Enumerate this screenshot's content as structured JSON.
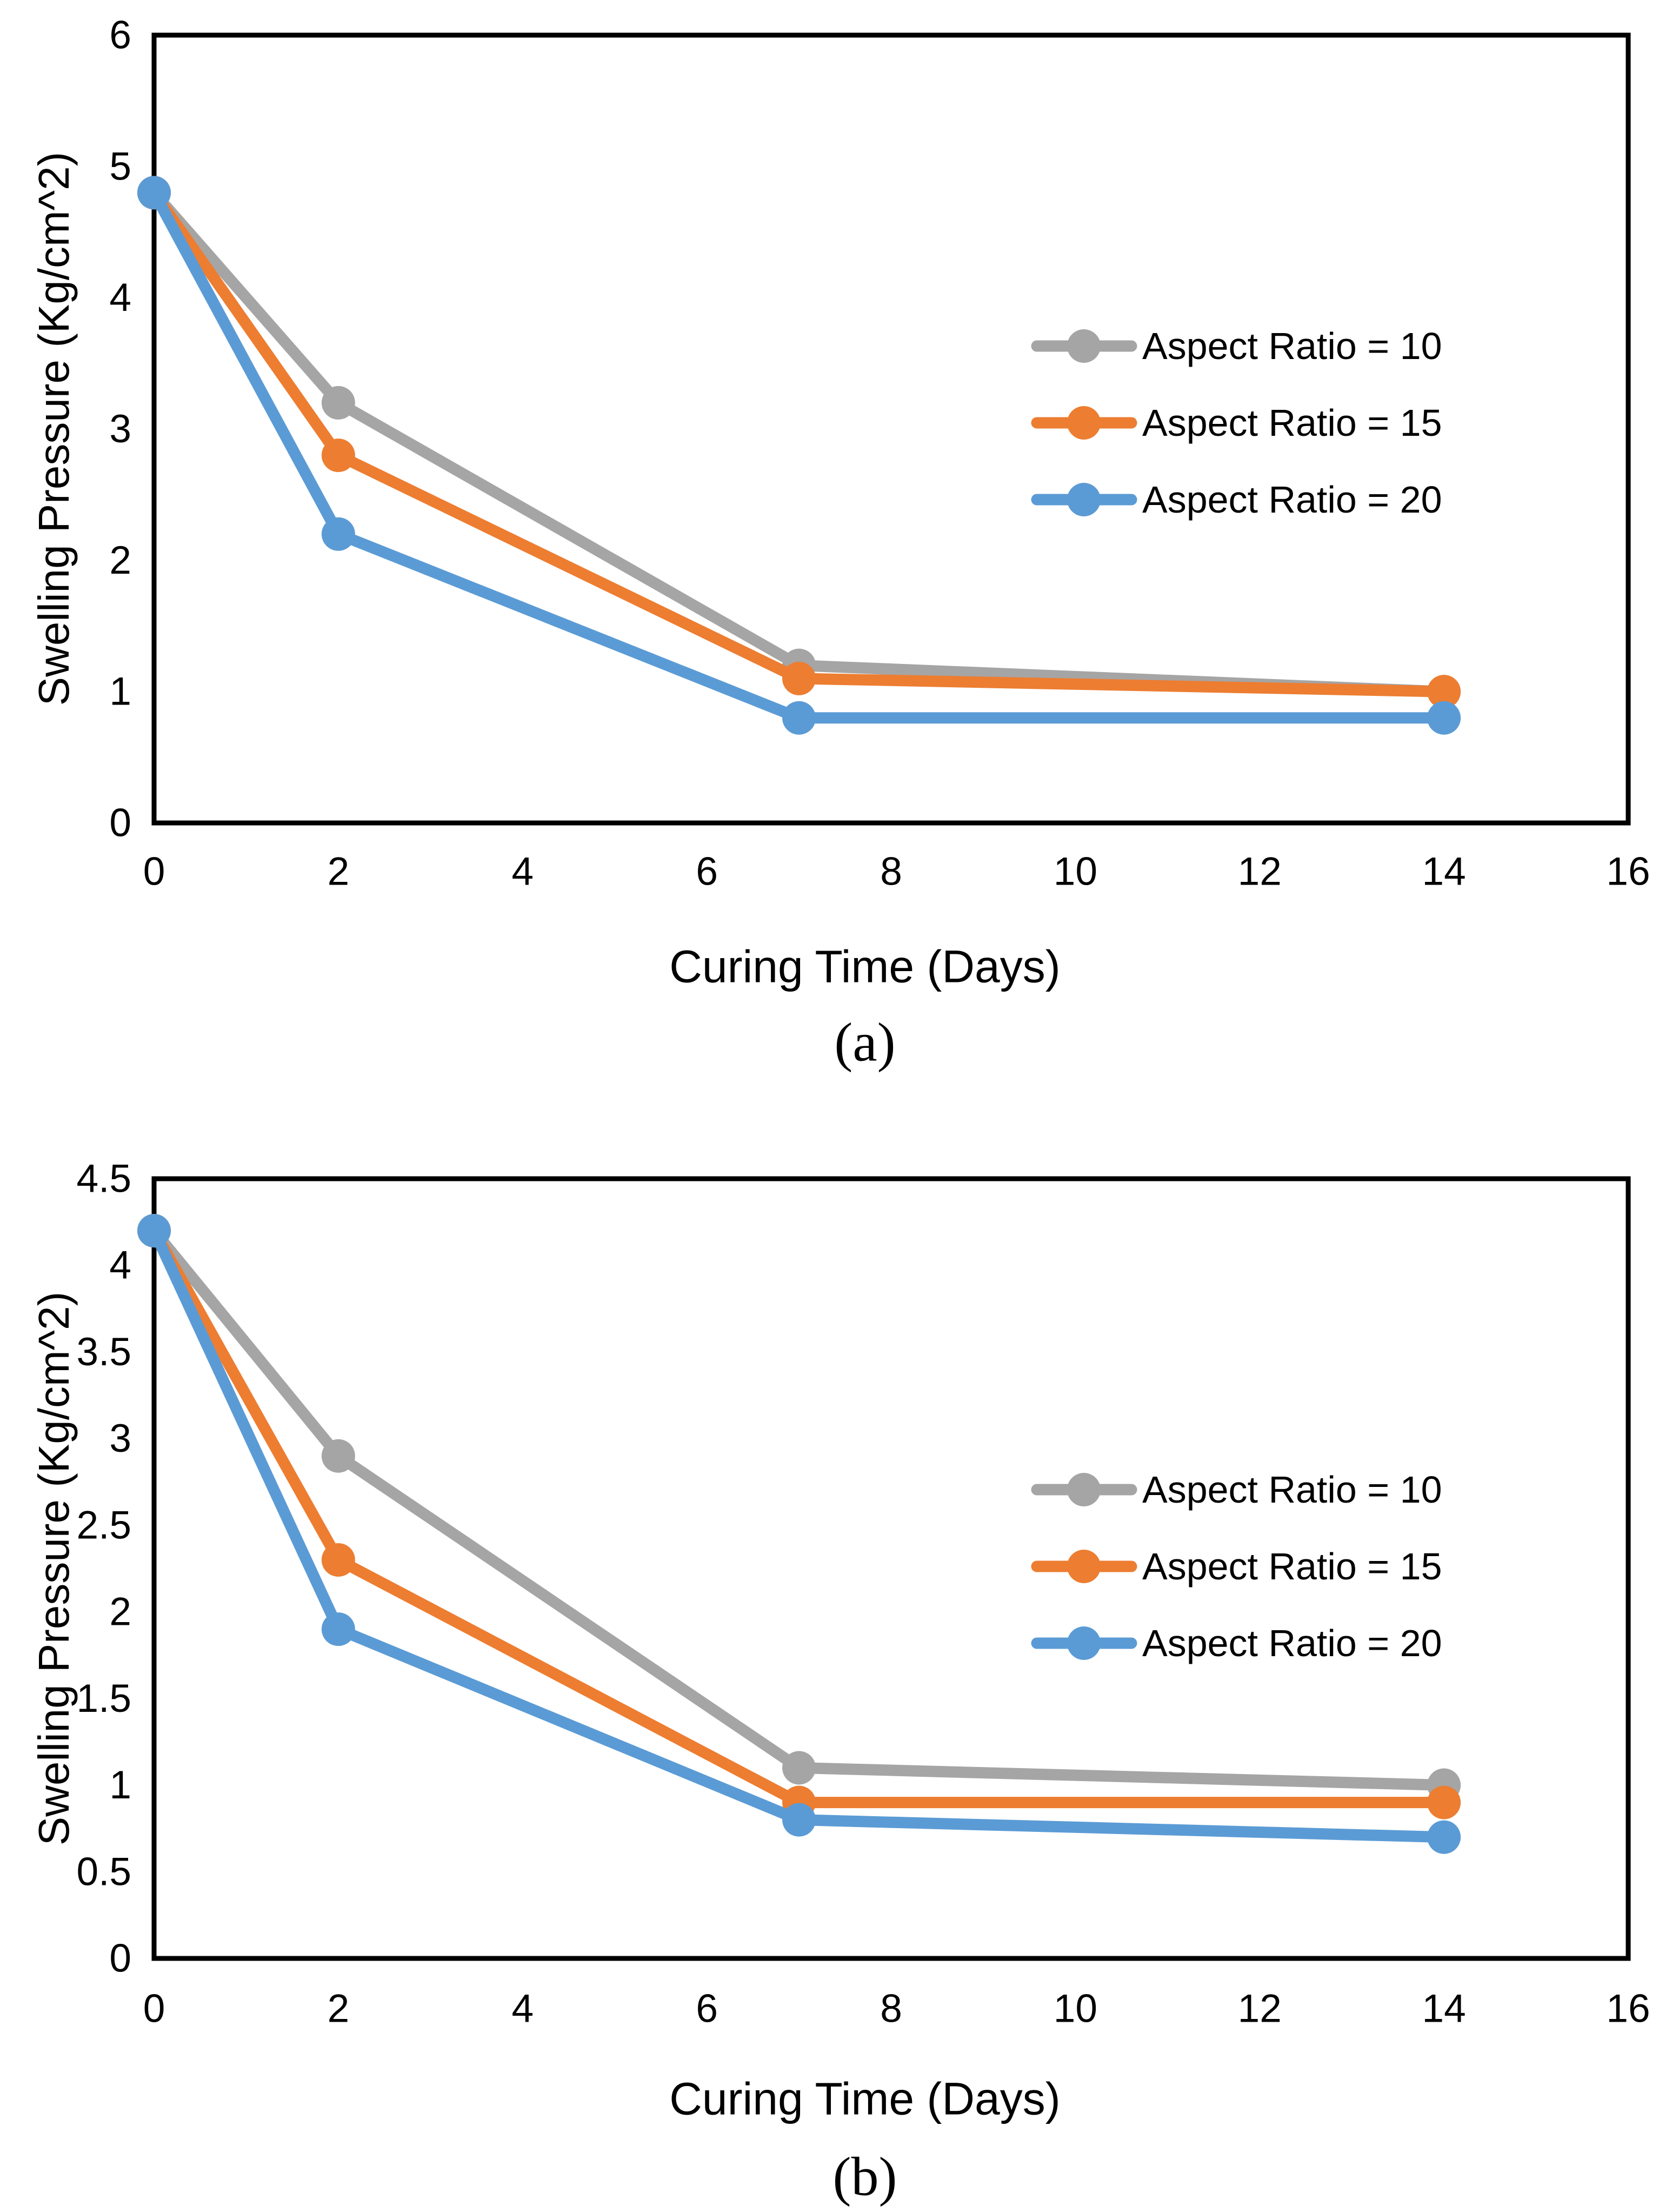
{
  "figure": {
    "background": "#FFFFFF",
    "text_color": "#000000",
    "axis_color": "#000000"
  },
  "chart_data": [
    {
      "id": "a",
      "type": "line",
      "caption": "(a)",
      "xlabel": "Curing Time (Days)",
      "ylabel": "Swelling Pressure (Kg/cm^2)",
      "x": [
        0,
        2,
        7,
        14
      ],
      "xlim": [
        0,
        16
      ],
      "x_ticks": [
        0,
        2,
        4,
        6,
        8,
        10,
        12,
        14,
        16
      ],
      "ylim": [
        0,
        6
      ],
      "y_ticks": [
        0,
        1,
        2,
        3,
        4,
        5,
        6
      ],
      "grid": false,
      "legend_position": "inside-right",
      "series": [
        {
          "name": "Aspect Ratio = 10",
          "color": "#A5A5A5",
          "values": [
            4.8,
            3.2,
            1.2,
            1.0
          ]
        },
        {
          "name": "Aspect Ratio = 15",
          "color": "#ED7D31",
          "values": [
            4.8,
            2.8,
            1.1,
            1.0
          ]
        },
        {
          "name": "Aspect Ratio = 20",
          "color": "#5B9BD5",
          "values": [
            4.8,
            2.2,
            0.8,
            0.8
          ]
        }
      ]
    },
    {
      "id": "b",
      "type": "line",
      "caption": "(b)",
      "xlabel": "Curing Time (Days)",
      "ylabel": "Swelling Pressure (Kg/cm^2)",
      "x": [
        0,
        2,
        7,
        14
      ],
      "xlim": [
        0,
        16
      ],
      "x_ticks": [
        0,
        2,
        4,
        6,
        8,
        10,
        12,
        14,
        16
      ],
      "ylim": [
        0,
        4.5
      ],
      "y_ticks": [
        0,
        0.5,
        1,
        1.5,
        2,
        2.5,
        3,
        3.5,
        4,
        4.5
      ],
      "grid": false,
      "legend_position": "inside-right",
      "series": [
        {
          "name": "Aspect Ratio = 10",
          "color": "#A5A5A5",
          "values": [
            4.2,
            2.9,
            1.1,
            1.0
          ]
        },
        {
          "name": "Aspect Ratio = 15",
          "color": "#ED7D31",
          "values": [
            4.2,
            2.3,
            0.9,
            0.9
          ]
        },
        {
          "name": "Aspect Ratio = 20",
          "color": "#5B9BD5",
          "values": [
            4.2,
            1.9,
            0.8,
            0.7
          ]
        }
      ]
    }
  ]
}
